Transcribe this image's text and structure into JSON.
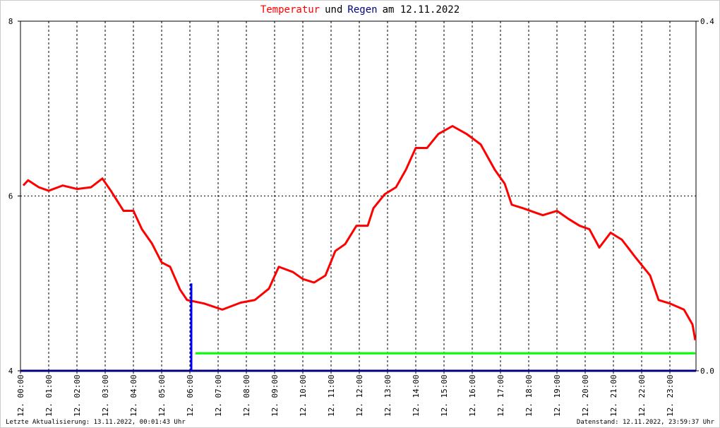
{
  "chart_data": {
    "type": "line",
    "title": [
      {
        "text": "Temperatur",
        "color": "#ff0000"
      },
      {
        "text": "und",
        "color": "#000000"
      },
      {
        "text": "Regen",
        "color": "#000080"
      },
      {
        "text": "am 12.11.2022",
        "color": "#000000"
      }
    ],
    "xlim": [
      0,
      24
    ],
    "xticks": [
      {
        "value": 0,
        "label": "12. 00:00"
      },
      {
        "value": 1,
        "label": "12. 01:00"
      },
      {
        "value": 2,
        "label": "12. 02:00"
      },
      {
        "value": 3,
        "label": "12. 03:00"
      },
      {
        "value": 4,
        "label": "12. 04:00"
      },
      {
        "value": 5,
        "label": "12. 05:00"
      },
      {
        "value": 6,
        "label": "12. 06:00"
      },
      {
        "value": 7,
        "label": "12. 07:00"
      },
      {
        "value": 8,
        "label": "12. 08:00"
      },
      {
        "value": 9,
        "label": "12. 09:00"
      },
      {
        "value": 10,
        "label": "12. 10:00"
      },
      {
        "value": 11,
        "label": "12. 11:00"
      },
      {
        "value": 12,
        "label": "12. 12:00"
      },
      {
        "value": 13,
        "label": "12. 13:00"
      },
      {
        "value": 14,
        "label": "12. 14:00"
      },
      {
        "value": 15,
        "label": "12. 15:00"
      },
      {
        "value": 16,
        "label": "12. 16:00"
      },
      {
        "value": 17,
        "label": "12. 17:00"
      },
      {
        "value": 18,
        "label": "12. 18:00"
      },
      {
        "value": 19,
        "label": "12. 19:00"
      },
      {
        "value": 20,
        "label": "12. 20:00"
      },
      {
        "value": 21,
        "label": "12. 21:00"
      },
      {
        "value": 22,
        "label": "12. 22:00"
      },
      {
        "value": 23,
        "label": "12. 23:00"
      }
    ],
    "ylim": [
      4,
      8
    ],
    "yticks": [
      4,
      6,
      8
    ],
    "y2lim": [
      0,
      0.4
    ],
    "y2ticks": [
      {
        "value": 0,
        "label": "0.0"
      },
      0.4
    ],
    "grid": true,
    "series": [
      {
        "name": "Temperatur",
        "type": "line",
        "axis": "y",
        "color": "#ff0000",
        "x": [
          0.1,
          0.27,
          0.65,
          1.0,
          1.5,
          2.0,
          2.5,
          2.9,
          3.2,
          3.65,
          4.0,
          4.3,
          4.65,
          5.0,
          5.3,
          5.65,
          5.9,
          6.5,
          7.15,
          7.8,
          8.3,
          8.8,
          9.15,
          9.65,
          10.0,
          10.4,
          10.8,
          11.15,
          11.5,
          11.9,
          12.3,
          12.5,
          12.9,
          13.3,
          13.65,
          14.0,
          14.4,
          14.8,
          15.3,
          15.8,
          16.3,
          16.8,
          17.15,
          17.4,
          17.8,
          18.15,
          18.5,
          19.0,
          19.4,
          19.8,
          20.15,
          20.5,
          20.9,
          21.3,
          21.8,
          22.3,
          22.6,
          23.0,
          23.5,
          23.8,
          23.9
        ],
        "values": [
          6.12,
          6.18,
          6.1,
          6.06,
          6.12,
          6.08,
          6.1,
          6.2,
          6.06,
          5.83,
          5.83,
          5.62,
          5.46,
          5.24,
          5.19,
          4.93,
          4.81,
          4.77,
          4.7,
          4.78,
          4.81,
          4.94,
          5.19,
          5.13,
          5.05,
          5.01,
          5.09,
          5.37,
          5.45,
          5.66,
          5.66,
          5.86,
          6.02,
          6.1,
          6.3,
          6.55,
          6.55,
          6.71,
          6.8,
          6.71,
          6.59,
          6.3,
          6.14,
          5.9,
          5.86,
          5.82,
          5.78,
          5.83,
          5.74,
          5.66,
          5.62,
          5.41,
          5.58,
          5.5,
          5.29,
          5.09,
          4.81,
          4.77,
          4.7,
          4.53,
          4.35
        ]
      },
      {
        "name": "Regen",
        "type": "bar",
        "axis": "y2",
        "color": "#0000ff",
        "x": [
          6.05
        ],
        "values": [
          0.1
        ]
      },
      {
        "type": "line",
        "axis": "y2",
        "color": "#00ff00",
        "x": [
          6.2,
          23.9
        ],
        "values": [
          0.02,
          0.02
        ]
      }
    ],
    "footer_left": "Letzte Aktualisierung: 13.11.2022, 00:01:43 Uhr",
    "footer_right": "Datenstand: 12.11.2022, 23:59:37 Uhr"
  }
}
